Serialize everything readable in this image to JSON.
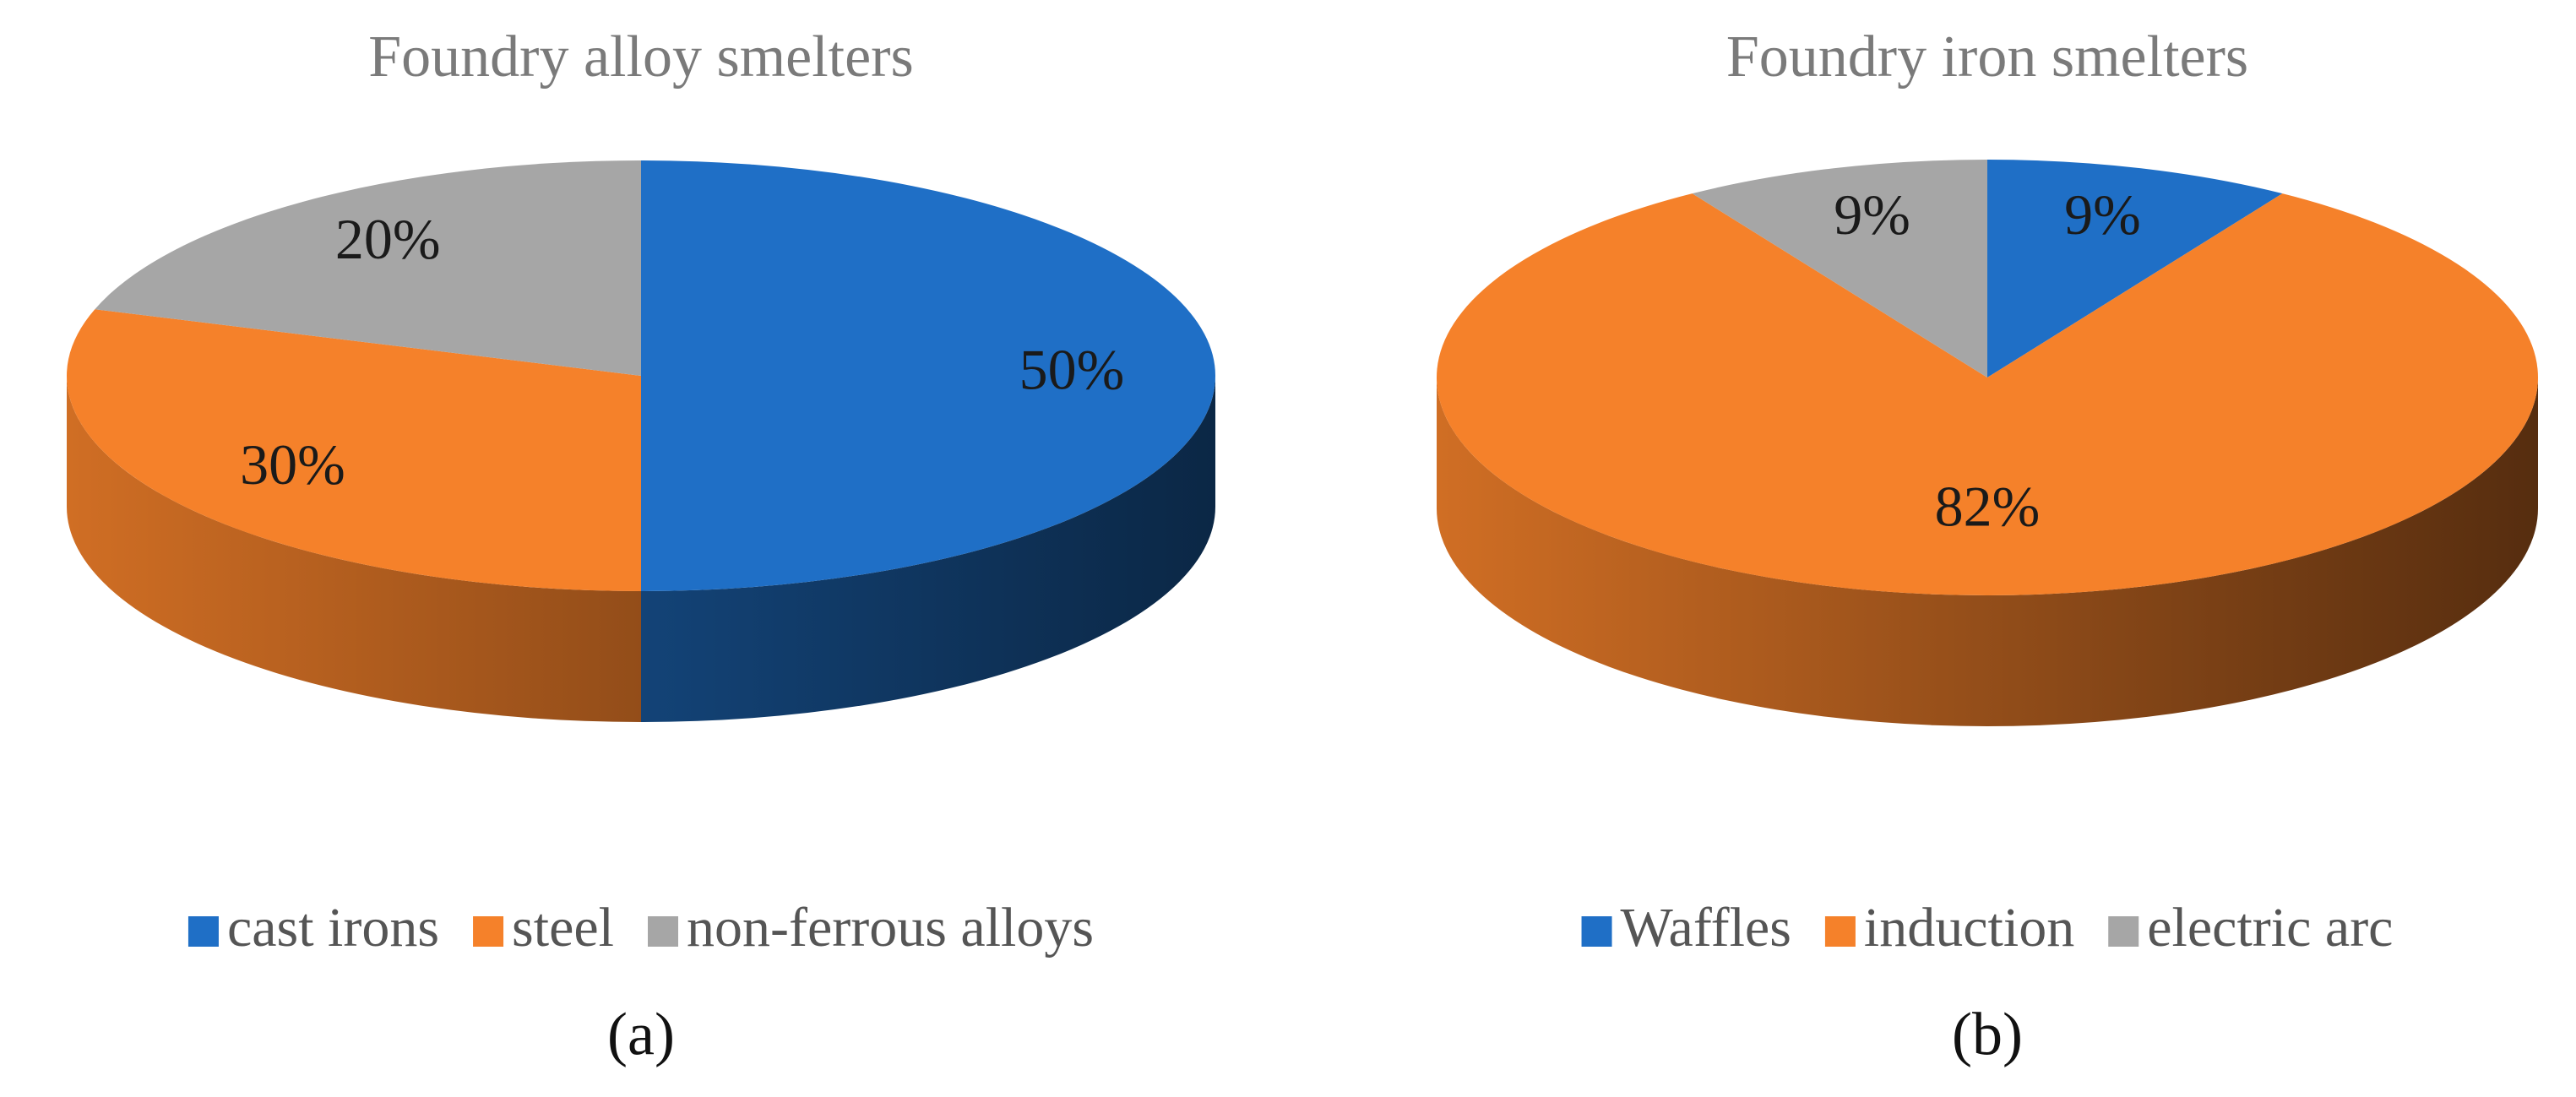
{
  "chart_data": [
    {
      "type": "pie",
      "title": "Foundry alloy smelters",
      "label": "(a)",
      "categories": [
        "cast irons",
        "steel",
        "non-ferrous alloys"
      ],
      "values": [
        50,
        30,
        20
      ],
      "value_labels": [
        "50%",
        "30%",
        "20%"
      ],
      "colors": [
        "#1f6fc6",
        "#f5812a",
        "#a6a6a6"
      ]
    },
    {
      "type": "pie",
      "title": "Foundry iron smelters",
      "label": "(b)",
      "categories": [
        "Waffles",
        "induction",
        "electric arc"
      ],
      "values": [
        9,
        82,
        9
      ],
      "value_labels": [
        "9%",
        "82%",
        "9%"
      ],
      "colors": [
        "#1f6fc6",
        "#f5812a",
        "#a6a6a6"
      ]
    }
  ]
}
